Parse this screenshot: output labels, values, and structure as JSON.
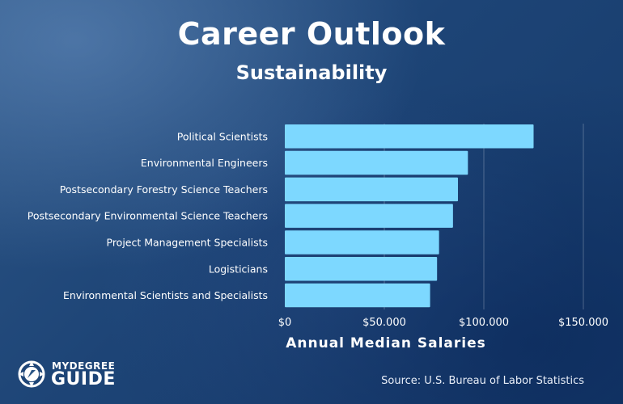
{
  "colors": {
    "bar": "#7dd8ff",
    "text": "#ffffff",
    "grid": "rgba(255,255,255,0.25)"
  },
  "logo": {
    "top": "MYDEGREE",
    "bottom": "GUIDE"
  },
  "source": "Source: U.S. Bureau of Labor Statistics",
  "chart_data": {
    "type": "bar",
    "orientation": "horizontal",
    "title": "Career Outlook",
    "subtitle": "Sustainability",
    "xlabel": "Annual Median Salaries",
    "ylabel": "",
    "xlim": [
      0,
      150000
    ],
    "xticks": [
      0,
      50000,
      100000,
      150000
    ],
    "xtick_labels": [
      "$0",
      "$50.000",
      "$100.000",
      "$150.000"
    ],
    "grid": true,
    "categories": [
      "Political Scientists",
      "Environmental Engineers",
      "Postsecondary Forestry Science Teachers",
      "Postsecondary Environmental Science Teachers",
      "Project Management Specialists",
      "Logisticians",
      "Environmental Scientists and Specialists"
    ],
    "values": [
      125000,
      92000,
      87000,
      84500,
      77500,
      76500,
      73000
    ]
  }
}
